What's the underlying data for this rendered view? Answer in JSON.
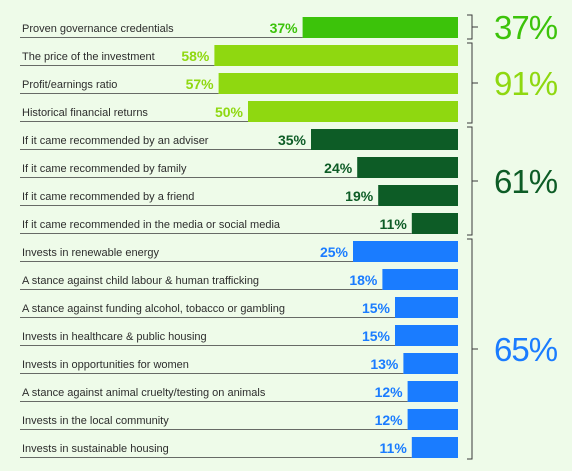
{
  "colors": {
    "background": "#eefbe9",
    "bright_green": "#3cc30a",
    "lime_green": "#8fd810",
    "dark_green": "#0d5c26",
    "blue": "#1a7cff",
    "rule": "#3a3a3a",
    "label_text": "#2d2d2d"
  },
  "chart_data": {
    "type": "bar",
    "orientation": "horizontal",
    "unit": "%",
    "groups": [
      {
        "total": "37%",
        "color_key": "bright_green",
        "items": [
          {
            "label": "Proven governance credentials",
            "value": 37,
            "value_label": "37%"
          }
        ]
      },
      {
        "total": "91%",
        "color_key": "lime_green",
        "items": [
          {
            "label": "The price of the investment",
            "value": 58,
            "value_label": "58%"
          },
          {
            "label": "Profit/earnings ratio",
            "value": 57,
            "value_label": "57%"
          },
          {
            "label": "Historical financial returns",
            "value": 50,
            "value_label": "50%"
          }
        ]
      },
      {
        "total": "61%",
        "color_key": "dark_green",
        "items": [
          {
            "label": "If it came recommended by an adviser",
            "value": 35,
            "value_label": "35%"
          },
          {
            "label": "If it came recommended by family",
            "value": 24,
            "value_label": "24%"
          },
          {
            "label": "If it came recommended by a friend",
            "value": 19,
            "value_label": "19%"
          },
          {
            "label": "If it came recommended in the media or social media",
            "value": 11,
            "value_label": "11%"
          }
        ]
      },
      {
        "total": "65%",
        "color_key": "blue",
        "items": [
          {
            "label": "Invests in renewable energy",
            "value": 25,
            "value_label": "25%"
          },
          {
            "label": "A stance against child labour & human trafficking",
            "value": 18,
            "value_label": "18%"
          },
          {
            "label": "A stance against funding alcohol, tobacco or gambling",
            "value": 15,
            "value_label": "15%"
          },
          {
            "label": "Invests in healthcare & public housing",
            "value": 15,
            "value_label": "15%"
          },
          {
            "label": "Invests in opportunities for women",
            "value": 13,
            "value_label": "13%"
          },
          {
            "label": "A stance against animal cruelty/testing on animals",
            "value": 12,
            "value_label": "12%"
          },
          {
            "label": "Invests in the local community",
            "value": 12,
            "value_label": "12%"
          },
          {
            "label": "Invests in sustainable housing",
            "value": 11,
            "value_label": "11%"
          }
        ]
      }
    ]
  }
}
